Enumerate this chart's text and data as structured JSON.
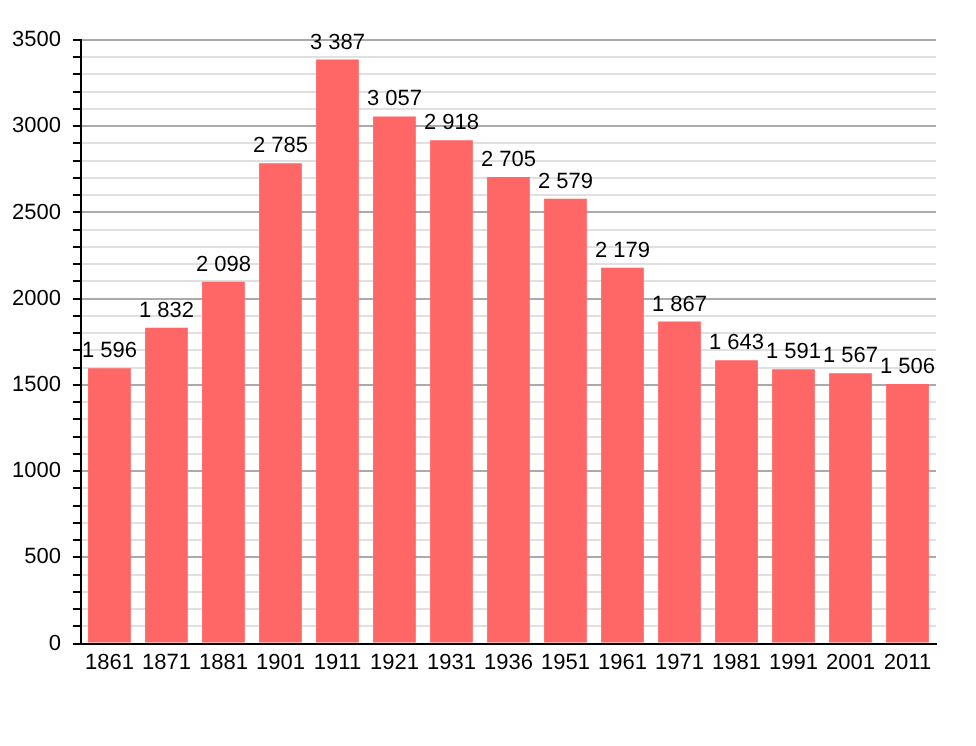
{
  "chart_data": {
    "type": "bar",
    "categories": [
      "1861",
      "1871",
      "1881",
      "1901",
      "1911",
      "1921",
      "1931",
      "1936",
      "1951",
      "1961",
      "1971",
      "1981",
      "1991",
      "2001",
      "2011"
    ],
    "values": [
      1596,
      1832,
      2098,
      2785,
      3387,
      3057,
      2918,
      2705,
      2579,
      2179,
      1867,
      1643,
      1591,
      1567,
      1506
    ],
    "value_labels": [
      "1 596",
      "1 832",
      "2 098",
      "2 785",
      "3 387",
      "3 057",
      "2 918",
      "2 705",
      "2 579",
      "2 179",
      "1 867",
      "1 643",
      "1 591",
      "1 567",
      "1 506"
    ],
    "color": "#ff6666",
    "ylim": [
      0,
      3500
    ],
    "yticks": [
      0,
      {
        "value": 100,
        "label": null
      },
      {
        "value": 200,
        "label": null
      },
      {
        "value": 300,
        "label": null
      },
      {
        "value": 400,
        "label": null
      },
      500,
      {
        "value": 600,
        "label": null
      },
      {
        "value": 700,
        "label": null
      },
      {
        "value": 800,
        "label": null
      },
      {
        "value": 900,
        "label": null
      },
      1000,
      {
        "value": 1100,
        "label": null
      },
      {
        "value": 1200,
        "label": null
      },
      {
        "value": 1300,
        "label": null
      },
      {
        "value": 1400,
        "label": null
      },
      1500,
      {
        "value": 1600,
        "label": null
      },
      {
        "value": 1700,
        "label": null
      },
      {
        "value": 1800,
        "label": null
      },
      {
        "value": 1900,
        "label": null
      },
      2000,
      {
        "value": 2100,
        "label": null
      },
      {
        "value": 2200,
        "label": null
      },
      {
        "value": 2300,
        "label": null
      },
      {
        "value": 2400,
        "label": null
      },
      2500,
      {
        "value": 2600,
        "label": null
      },
      {
        "value": 2700,
        "label": null
      },
      {
        "value": 2800,
        "label": null
      },
      {
        "value": 2900,
        "label": null
      },
      3000,
      {
        "value": 3100,
        "label": null
      },
      {
        "value": 3200,
        "label": null
      },
      {
        "value": 3300,
        "label": null
      },
      {
        "value": 3400,
        "label": null
      },
      3500
    ],
    "grid": "y",
    "legend": false
  }
}
